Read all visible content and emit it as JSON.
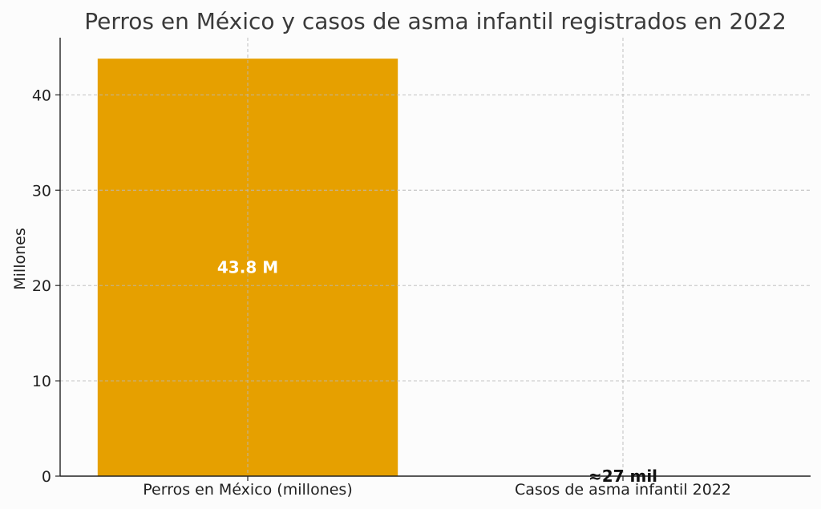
{
  "chart_data": {
    "type": "bar",
    "title": "Perros en México y casos de asma infantil registrados en 2022",
    "xlabel": "",
    "ylabel": "Millones",
    "categories": [
      "Perros en México (millones)",
      "Casos de asma infantil 2022"
    ],
    "values": [
      43.8,
      0.027
    ],
    "data_labels": [
      "43.8 M",
      "≈27 mil"
    ],
    "ylim": [
      0,
      46
    ],
    "yticks": [
      0,
      10,
      20,
      30,
      40
    ],
    "grid": true,
    "bar_color": "#e6a000",
    "label_colors": [
      "#ffffff",
      "#111111"
    ]
  }
}
